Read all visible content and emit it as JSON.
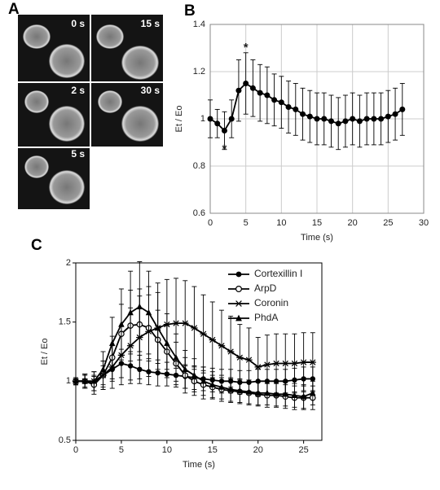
{
  "panel_labels": [
    "A",
    "B",
    "C"
  ],
  "image_labels": [
    "0 s",
    "15 s",
    "2 s",
    "30 s",
    "5 s"
  ],
  "chart_data": [
    {
      "type": "line",
      "x_label": "Time (s)",
      "y_label": "Et / Eo",
      "grid": true,
      "x": [
        0,
        1,
        2,
        3,
        4,
        5,
        6,
        7,
        8,
        9,
        10,
        11,
        12,
        13,
        14,
        15,
        16,
        17,
        18,
        19,
        20,
        21,
        22,
        23,
        24,
        25,
        26,
        27
      ],
      "values": [
        1.0,
        0.98,
        0.95,
        1.0,
        1.12,
        1.15,
        1.13,
        1.11,
        1.1,
        1.08,
        1.07,
        1.05,
        1.04,
        1.02,
        1.01,
        1.0,
        1.0,
        0.99,
        0.98,
        0.99,
        1.0,
        0.99,
        1.0,
        1.0,
        1.0,
        1.01,
        1.02,
        1.04
      ],
      "errors": [
        0.08,
        0.06,
        0.08,
        0.08,
        0.13,
        0.13,
        0.12,
        0.12,
        0.12,
        0.11,
        0.11,
        0.11,
        0.11,
        0.11,
        0.11,
        0.11,
        0.11,
        0.11,
        0.11,
        0.11,
        0.11,
        0.11,
        0.11,
        0.11,
        0.11,
        0.11,
        0.11,
        0.11
      ],
      "color": "#000000",
      "annotations": [
        {
          "text": "*",
          "x": 2,
          "y": 0.87
        },
        {
          "text": "*",
          "x": 5,
          "y": 1.3
        }
      ],
      "xlim": [
        0,
        30
      ],
      "xticks": [
        0,
        5,
        10,
        15,
        20,
        25,
        30
      ],
      "ylim": [
        0.6,
        1.4
      ],
      "yticks": [
        0.6,
        0.8,
        1,
        1.2,
        1.4
      ]
    },
    {
      "type": "line",
      "x_label": "Time (s)",
      "y_label": "Et / Eo",
      "grid": false,
      "legend": "upper right",
      "x": [
        0,
        1,
        2,
        3,
        4,
        5,
        6,
        7,
        8,
        9,
        10,
        11,
        12,
        13,
        14,
        15,
        16,
        17,
        18,
        19,
        20,
        21,
        22,
        23,
        24,
        25,
        26
      ],
      "series": [
        {
          "name": "Cortexillin I",
          "color": "#000000",
          "marker": "filled-circle",
          "values": [
            1.0,
            1.0,
            0.98,
            1.05,
            1.1,
            1.15,
            1.13,
            1.1,
            1.08,
            1.07,
            1.06,
            1.05,
            1.04,
            1.03,
            1.02,
            1.01,
            1.0,
            1.0,
            0.99,
            0.99,
            1.0,
            1.0,
            1.0,
            1.0,
            1.01,
            1.02,
            1.02
          ],
          "errors": [
            0.03,
            0.05,
            0.06,
            0.08,
            0.1,
            0.12,
            0.12,
            0.12,
            0.11,
            0.11,
            0.1,
            0.1,
            0.1,
            0.1,
            0.1,
            0.1,
            0.1,
            0.1,
            0.1,
            0.1,
            0.1,
            0.1,
            0.1,
            0.1,
            0.1,
            0.1,
            0.1
          ]
        },
        {
          "name": "ArpD",
          "color": "#000000",
          "marker": "open-circle",
          "values": [
            1.0,
            1.0,
            0.97,
            1.05,
            1.2,
            1.4,
            1.47,
            1.48,
            1.45,
            1.35,
            1.25,
            1.15,
            1.05,
            1.0,
            0.97,
            0.95,
            0.93,
            0.92,
            0.91,
            0.9,
            0.89,
            0.88,
            0.88,
            0.87,
            0.86,
            0.86,
            0.86
          ],
          "errors": [
            0.03,
            0.06,
            0.08,
            0.12,
            0.18,
            0.25,
            0.3,
            0.3,
            0.28,
            0.25,
            0.22,
            0.18,
            0.15,
            0.12,
            0.12,
            0.1,
            0.1,
            0.1,
            0.1,
            0.1,
            0.1,
            0.1,
            0.1,
            0.1,
            0.1,
            0.1,
            0.1
          ]
        },
        {
          "name": "Coronin",
          "color": "#000000",
          "marker": "star",
          "values": [
            1.0,
            1.0,
            1.0,
            1.05,
            1.12,
            1.22,
            1.3,
            1.37,
            1.42,
            1.45,
            1.48,
            1.49,
            1.49,
            1.45,
            1.4,
            1.35,
            1.3,
            1.25,
            1.2,
            1.18,
            1.12,
            1.14,
            1.15,
            1.15,
            1.15,
            1.16,
            1.16
          ],
          "errors": [
            0.03,
            0.06,
            0.08,
            0.12,
            0.18,
            0.25,
            0.32,
            0.35,
            0.38,
            0.38,
            0.38,
            0.38,
            0.36,
            0.35,
            0.33,
            0.32,
            0.3,
            0.3,
            0.28,
            0.27,
            0.25,
            0.25,
            0.25,
            0.25,
            0.25,
            0.25,
            0.25
          ]
        },
        {
          "name": "PhdA",
          "color": "#000000",
          "marker": "triangle",
          "values": [
            1.0,
            1.0,
            1.0,
            1.1,
            1.32,
            1.48,
            1.58,
            1.63,
            1.58,
            1.45,
            1.32,
            1.2,
            1.1,
            1.05,
            1.0,
            0.97,
            0.95,
            0.93,
            0.92,
            0.91,
            0.9,
            0.9,
            0.89,
            0.89,
            0.88,
            0.87,
            0.9
          ],
          "errors": [
            0.03,
            0.06,
            0.08,
            0.15,
            0.22,
            0.3,
            0.35,
            0.38,
            0.35,
            0.3,
            0.25,
            0.2,
            0.16,
            0.14,
            0.12,
            0.11,
            0.1,
            0.1,
            0.1,
            0.1,
            0.1,
            0.1,
            0.1,
            0.1,
            0.1,
            0.1,
            0.1
          ]
        }
      ],
      "xlim": [
        0,
        27
      ],
      "xticks": [
        0,
        5,
        10,
        15,
        20,
        25
      ],
      "ylim": [
        0.5,
        2
      ],
      "yticks": [
        0.5,
        1,
        1.5,
        2
      ]
    }
  ]
}
